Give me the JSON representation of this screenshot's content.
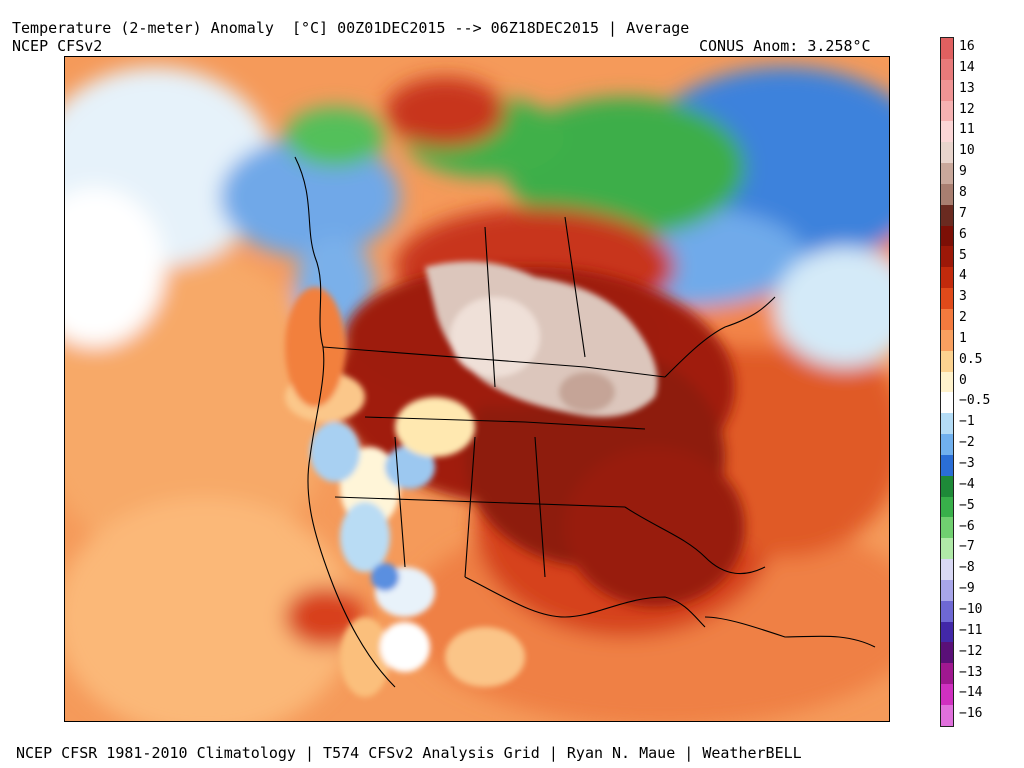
{
  "header": {
    "title": "Temperature (2-meter) Anomaly  [°C] 00Z01DEC2015 --> 06Z18DEC2015 | Average",
    "model": "NCEP CFSv2",
    "conus_anomaly": "CONUS Anom: 3.258°C"
  },
  "footer": {
    "credits": "NCEP CFSR 1981-2010 Climatology | T574 CFSv2 Analysis Grid | Ryan N. Maue | WeatherBELL"
  },
  "colorbar": {
    "unit": "°C",
    "bins": [
      {
        "label": "16",
        "color": "#e06060"
      },
      {
        "label": "14",
        "color": "#e87a7a"
      },
      {
        "label": "13",
        "color": "#f09494"
      },
      {
        "label": "12",
        "color": "#f6b2b2"
      },
      {
        "label": "11",
        "color": "#fbd6d6"
      },
      {
        "label": "10",
        "color": "#e8d4cc"
      },
      {
        "label": "9",
        "color": "#c9a89b"
      },
      {
        "label": "8",
        "color": "#a87e70"
      },
      {
        "label": "7",
        "color": "#6a2a20"
      },
      {
        "label": "6",
        "color": "#7c0f06"
      },
      {
        "label": "5",
        "color": "#9c1808"
      },
      {
        "label": "4",
        "color": "#c22a0c"
      },
      {
        "label": "3",
        "color": "#e04a1a"
      },
      {
        "label": "2",
        "color": "#f47a3e"
      },
      {
        "label": "1",
        "color": "#f9a060"
      },
      {
        "label": "0.5",
        "color": "#fcd290"
      },
      {
        "label": "0",
        "color": "#fff2cc"
      },
      {
        "label": "−0.5",
        "color": "#ffffff"
      },
      {
        "label": "−1",
        "color": "#b4dcf6"
      },
      {
        "label": "−2",
        "color": "#70b0ee"
      },
      {
        "label": "−3",
        "color": "#2a6ed6"
      },
      {
        "label": "−4",
        "color": "#1e8a38"
      },
      {
        "label": "−5",
        "color": "#38b04a"
      },
      {
        "label": "−6",
        "color": "#70d070"
      },
      {
        "label": "−7",
        "color": "#b0eaa8"
      },
      {
        "label": "−8",
        "color": "#d8d8f4"
      },
      {
        "label": "−9",
        "color": "#a8a6ea"
      },
      {
        "label": "−10",
        "color": "#6e68d4"
      },
      {
        "label": "−11",
        "color": "#4228a8"
      },
      {
        "label": "−12",
        "color": "#5a1078"
      },
      {
        "label": "−13",
        "color": "#a01890"
      },
      {
        "label": "−14",
        "color": "#d030c0"
      },
      {
        "label": "−16",
        "color": "#e070dc"
      }
    ]
  },
  "map": {
    "region": "North America",
    "colors": {
      "ocean_warm": "#f7a565",
      "ocean_mid": "#f3894a",
      "warm_strong": "#d2401a",
      "hot_core": "#8e1a0c",
      "very_hot": "#d8bcb2",
      "cold": "#3a7ad8",
      "cold_light": "#9cc8f0",
      "green": "#3aae48",
      "white": "#ffffff",
      "coast_line": "#000000"
    }
  }
}
